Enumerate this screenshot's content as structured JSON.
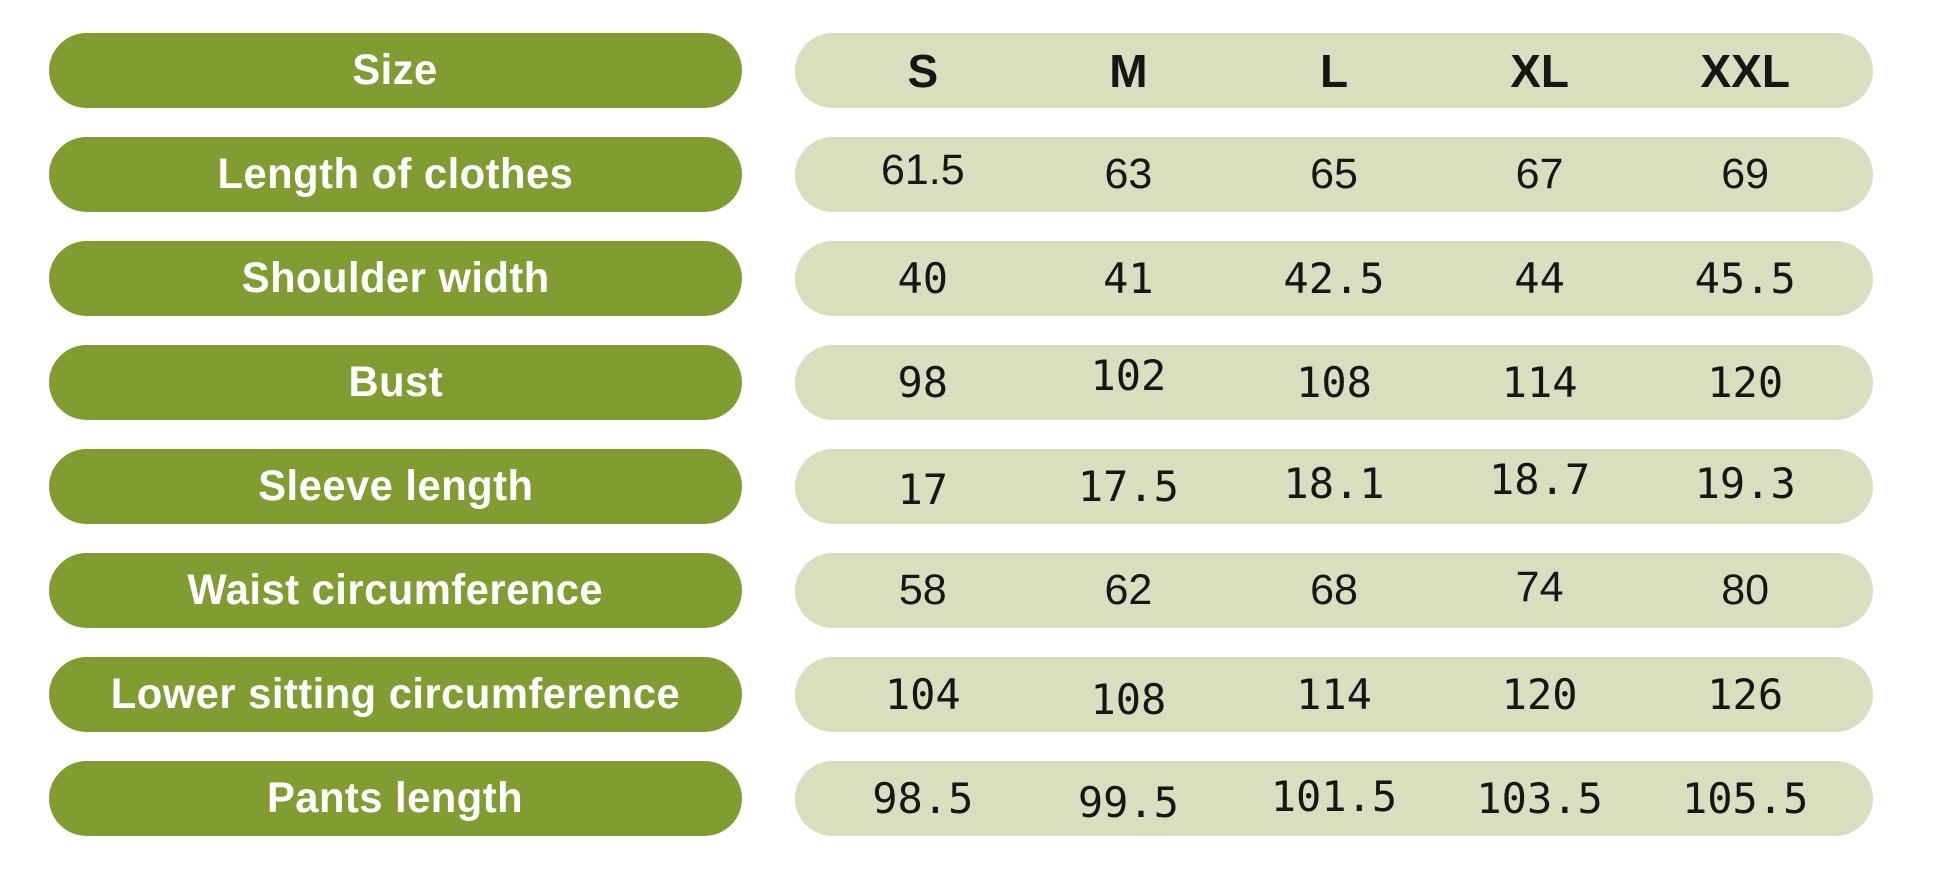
{
  "size_chart": {
    "header": {
      "label": "Size",
      "sizes": [
        "S",
        "M",
        "L",
        "XL",
        "XXL"
      ]
    },
    "rows": [
      {
        "label": "Length of clothes",
        "values": [
          "61.5",
          "63",
          "65",
          "67",
          "69"
        ]
      },
      {
        "label": "Shoulder width",
        "values": [
          "40",
          "41",
          "42.5",
          "44",
          "45.5"
        ]
      },
      {
        "label": "Bust",
        "values": [
          "98",
          "102",
          "108",
          "114",
          "120"
        ]
      },
      {
        "label": "Sleeve length",
        "values": [
          "17",
          "17.5",
          "18.1",
          "18.7",
          "19.3"
        ]
      },
      {
        "label": "Waist circumference",
        "values": [
          "58",
          "62",
          "68",
          "74",
          "80"
        ]
      },
      {
        "label": "Lower sitting circumference",
        "values": [
          "104",
          "108",
          "114",
          "120",
          "126"
        ]
      },
      {
        "label": "Pants length",
        "values": [
          "98.5",
          "99.5",
          "101.5",
          "103.5",
          "105.5"
        ]
      }
    ]
  },
  "colors": {
    "label_pill": "#819d31",
    "label_text": "#ffffff",
    "value_pill": "#d7dfbf",
    "value_text": "#161616",
    "background": "#ffffff"
  },
  "chart_data": {
    "type": "table",
    "title": "Size",
    "categories": [
      "S",
      "M",
      "L",
      "XL",
      "XXL"
    ],
    "series": [
      {
        "name": "Length of clothes",
        "values": [
          61.5,
          63,
          65,
          67,
          69
        ]
      },
      {
        "name": "Shoulder width",
        "values": [
          40,
          41,
          42.5,
          44,
          45.5
        ]
      },
      {
        "name": "Bust",
        "values": [
          98,
          102,
          108,
          114,
          120
        ]
      },
      {
        "name": "Sleeve length",
        "values": [
          17,
          17.5,
          18.1,
          18.7,
          19.3
        ]
      },
      {
        "name": "Waist circumference",
        "values": [
          58,
          62,
          68,
          74,
          80
        ]
      },
      {
        "name": "Lower sitting circumference",
        "values": [
          104,
          108,
          114,
          120,
          126
        ]
      },
      {
        "name": "Pants length",
        "values": [
          98.5,
          99.5,
          101.5,
          103.5,
          105.5
        ]
      }
    ]
  }
}
